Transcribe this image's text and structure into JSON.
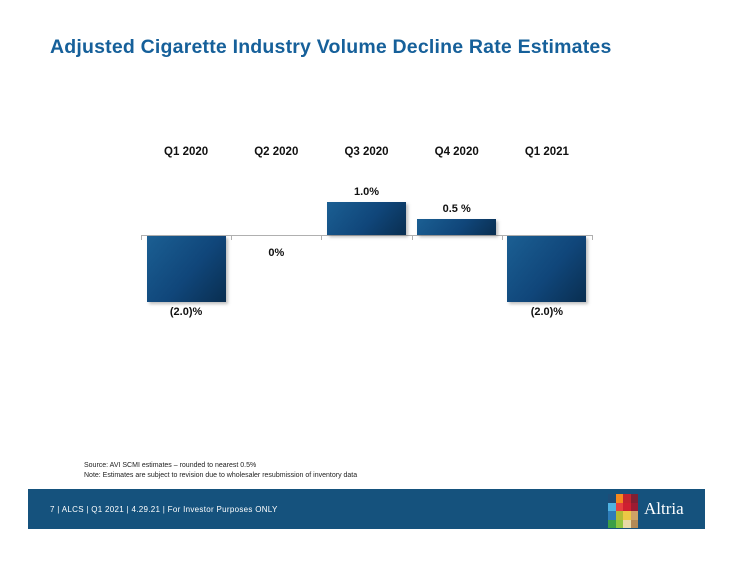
{
  "slide": {
    "title": "Adjusted Cigarette Industry Volume Decline Rate Estimates",
    "title_color": "#16609a"
  },
  "chart_data": {
    "type": "bar",
    "title": "Adjusted Cigarette Industry Volume Decline Rate Estimates",
    "categories": [
      "Q1 2020",
      "Q2 2020",
      "Q3 2020",
      "Q4 2020",
      "Q1 2021"
    ],
    "values": [
      -2.0,
      0,
      1.0,
      0.5,
      -2.0
    ],
    "value_labels": [
      "(2.0)%",
      "0%",
      "1.0%",
      "0.5 %",
      "(2.0)%"
    ],
    "xlabel": "",
    "ylabel": "",
    "ylim": [
      -2.5,
      1.5
    ],
    "grid": false,
    "legend": false,
    "axis_color": "#b0b0b0",
    "bar_color_top": "#1b5f93",
    "bar_color_mid": "#10467a",
    "bar_color_bottom": "#092e50"
  },
  "notes": {
    "source": "Source: AVI SCMI estimates – rounded to nearest 0.5%",
    "note": "Note: Estimates are subject to revision due to wholesaler resubmission of inventory data"
  },
  "footer": {
    "text": "7 | ALCS | Q1 2021 | 4.29.21 | For Investor Purposes ONLY",
    "bar_color": "#15527d",
    "logo_text": "Altria",
    "logo_mosaic": [
      "#1d4d78",
      "#f6891f",
      "#c2242e",
      "#7f2033",
      "#4fb3e2",
      "#e8403f",
      "#cf2030",
      "#9c1b33",
      "#2d7cb9",
      "#b3bc35",
      "#edc845",
      "#cfa266",
      "#3b9f47",
      "#8ec63f",
      "#e7d9a7",
      "#b28a57"
    ]
  }
}
